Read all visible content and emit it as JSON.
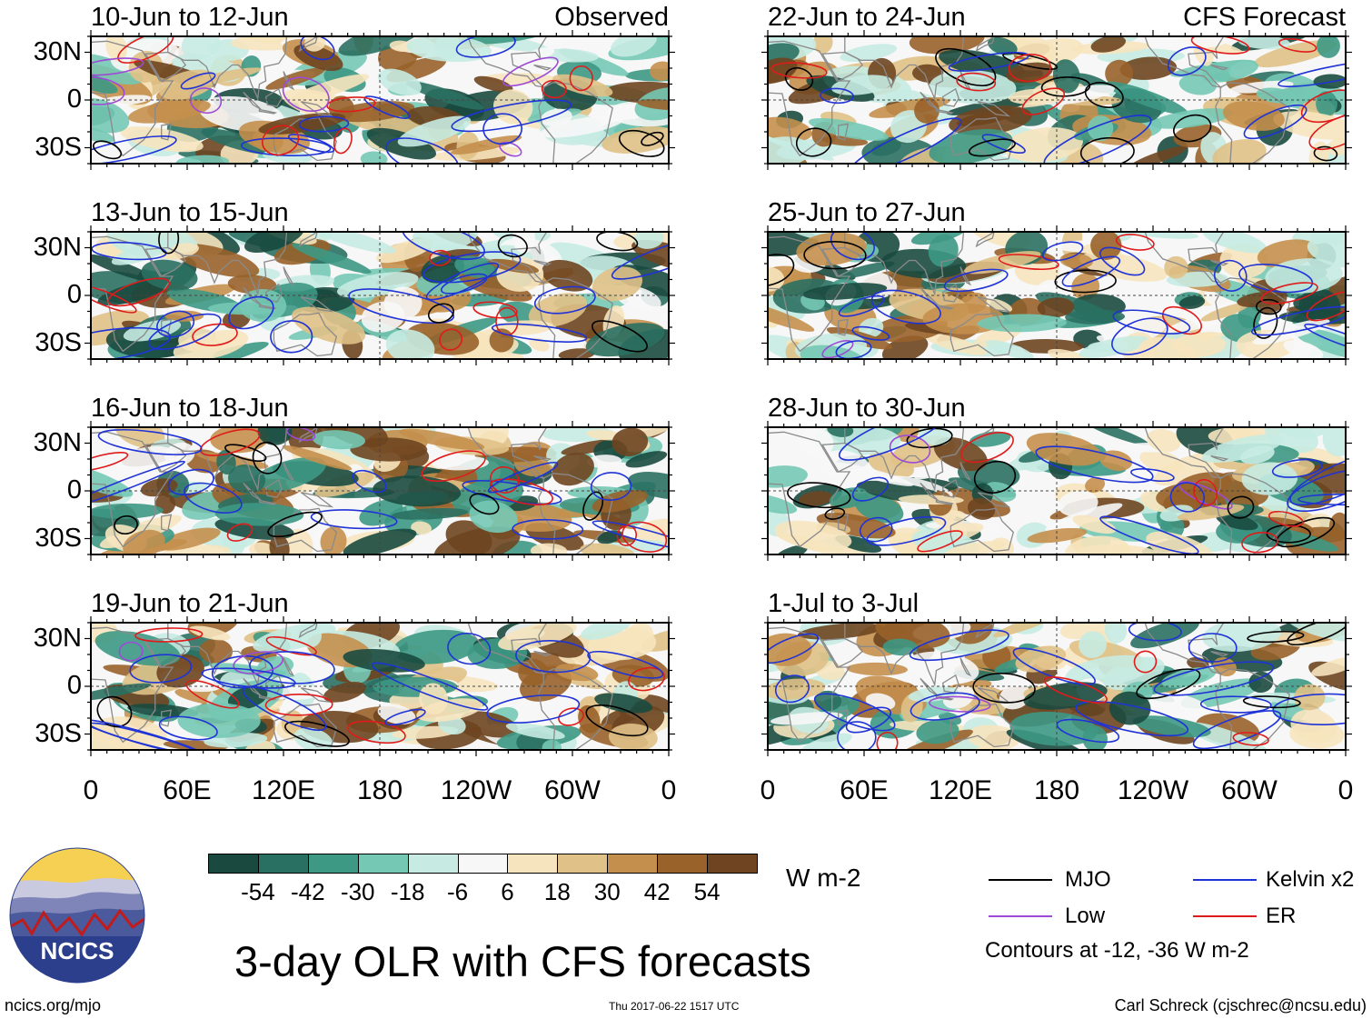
{
  "colors": {
    "bin": [
      "#1a4a3f",
      "#2a7062",
      "#3d9884",
      "#74c8b4",
      "#c7ebe2",
      "#f7f7f7",
      "#f6e4be",
      "#e0c187",
      "#c48f4c",
      "#98622a",
      "#6e4520"
    ],
    "mjo": "#000000",
    "kelvin": "#1f33d6",
    "low": "#9d4bd6",
    "er": "#e01b1b",
    "land": "#8a8a8a",
    "ncics_blue": "#2b3f8c",
    "ncics_sun": "#f2c230"
  },
  "chart_data": {
    "type": "heatmap",
    "title": "3-day OLR with CFS forecasts",
    "variable": "OLR anomaly",
    "units": "W m-2",
    "colorbar_ticks": [
      "-54",
      "-42",
      "-30",
      "-18",
      "-6",
      "6",
      "18",
      "30",
      "42",
      "54"
    ],
    "colorbar_bins": 11,
    "x_ticks": [
      "0",
      "60E",
      "120E",
      "180",
      "120W",
      "60W",
      "0"
    ],
    "y_ticks": [
      "30N",
      "0",
      "30S"
    ],
    "xlim": [
      0,
      360
    ],
    "ylim": [
      -40,
      40
    ],
    "left_column_label": "Observed",
    "right_column_label": "CFS Forecast",
    "panels": [
      {
        "period": "10-Jun to 12-Jun",
        "source": "Observed"
      },
      {
        "period": "13-Jun to 15-Jun",
        "source": "Observed"
      },
      {
        "period": "16-Jun to 18-Jun",
        "source": "Observed"
      },
      {
        "period": "19-Jun to 21-Jun",
        "source": "Observed"
      },
      {
        "period": "22-Jun to 24-Jun",
        "source": "CFS Forecast"
      },
      {
        "period": "25-Jun to 27-Jun",
        "source": "CFS Forecast"
      },
      {
        "period": "28-Jun to 30-Jun",
        "source": "CFS Forecast"
      },
      {
        "period": "1-Jul to 3-Jul",
        "source": "CFS Forecast"
      }
    ],
    "contour_legend": [
      {
        "name": "MJO",
        "color_key": "mjo"
      },
      {
        "name": "Kelvin x2",
        "color_key": "kelvin"
      },
      {
        "name": "Low",
        "color_key": "low"
      },
      {
        "name": "ER",
        "color_key": "er"
      }
    ],
    "contour_note": "Contours at -12, -36 W m-2"
  },
  "footer": {
    "site": "ncics.org/mjo",
    "timestamp": "Thu 2017-06-22 1517 UTC",
    "author": "Carl Schreck (cjschrec@ncsu.edu)",
    "logo_text": "NCICS"
  }
}
